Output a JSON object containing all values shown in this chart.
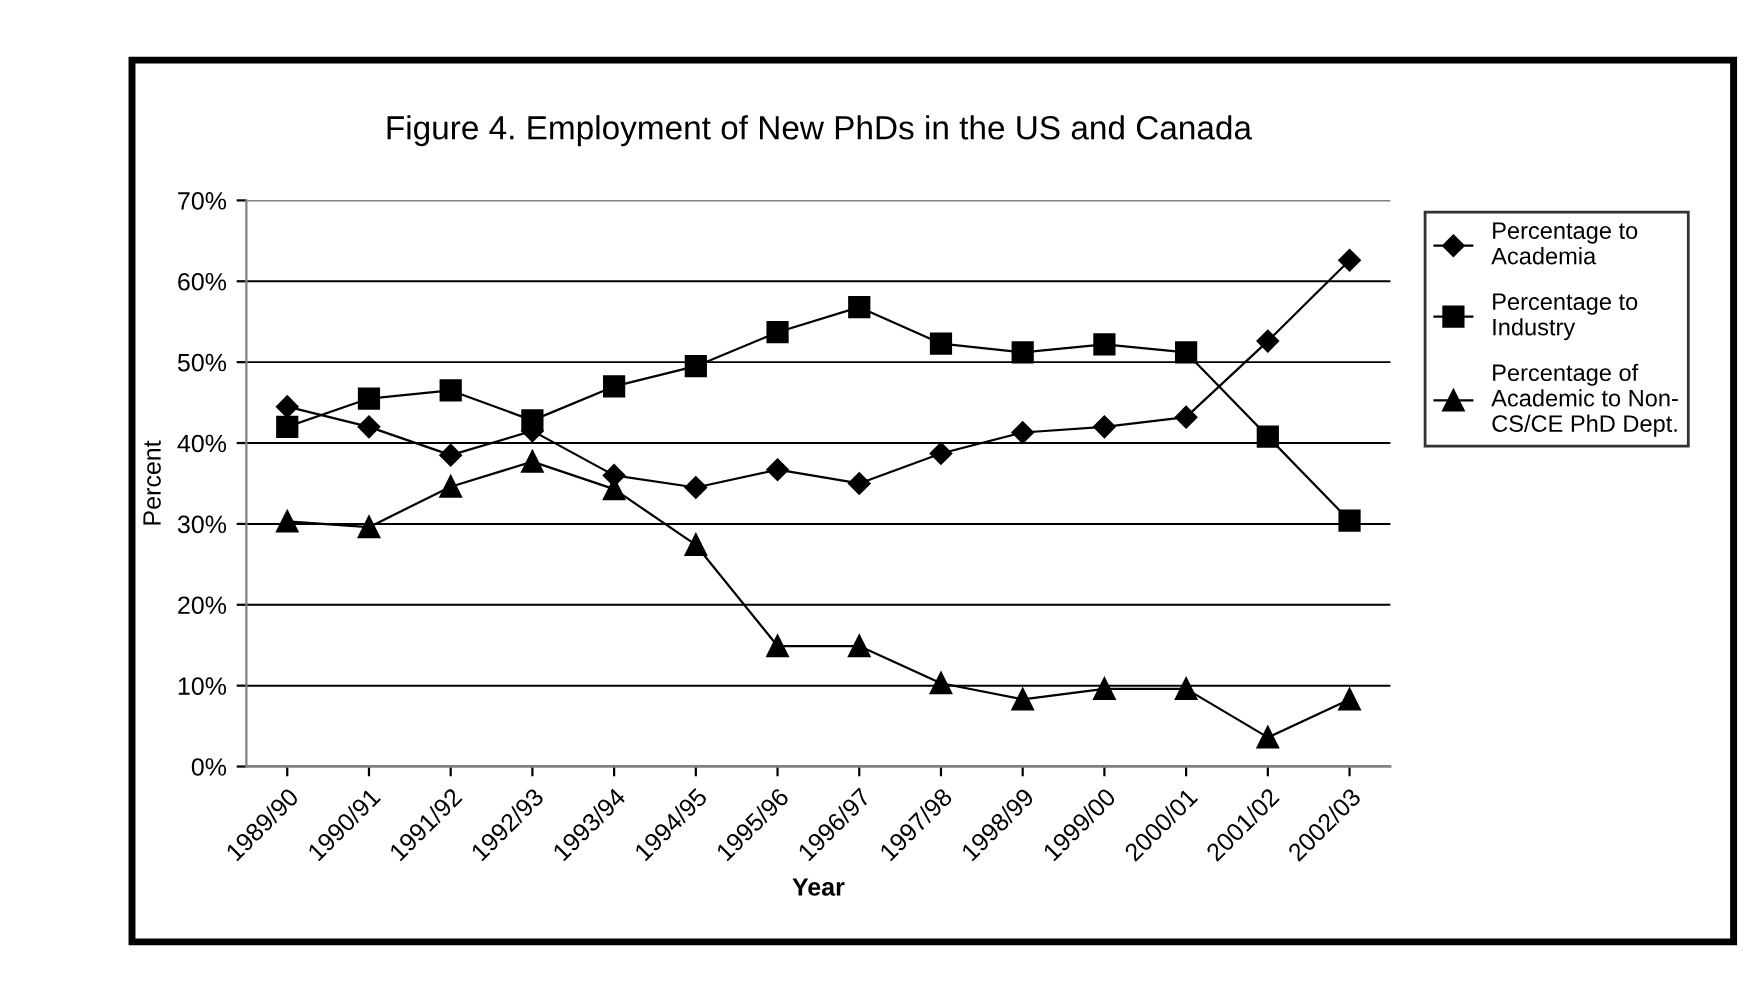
{
  "chart_data": {
    "type": "line",
    "title": "Figure 4. Employment of New PhDs in the US and Canada",
    "xlabel": "Year",
    "ylabel": "Percent",
    "categories": [
      "1989/90",
      "1990/91",
      "1991/92",
      "1992/93",
      "1993/94",
      "1994/95",
      "1995/96",
      "1996/97",
      "1997/98",
      "1998/99",
      "1999/00",
      "2000/01",
      "2001/02",
      "2002/03"
    ],
    "series": [
      {
        "name": "Percentage to\nAcademia",
        "color": "#000000",
        "marker": "diamond",
        "values": [
          44.5,
          42,
          38.5,
          41.5,
          36,
          34.5,
          36.7,
          35,
          38.7,
          41.3,
          42,
          43.2,
          52.6,
          62.6
        ]
      },
      {
        "name": "Percentage to\nIndustry",
        "color": "#000000",
        "marker": "square",
        "values": [
          42,
          45.5,
          46.5,
          42.8,
          47,
          49.5,
          53.7,
          56.8,
          52.3,
          51.2,
          52.2,
          51.2,
          40.8,
          30.4
        ]
      },
      {
        "name": "Percentage of\nAcademic to Non-\nCS/CE PhD Dept.",
        "color": "#000000",
        "marker": "triangle",
        "values": [
          30.3,
          29.6,
          34.6,
          37.7,
          34.3,
          27.4,
          14.9,
          14.9,
          10.3,
          8.3,
          9.6,
          9.6,
          3.6,
          8.3
        ]
      }
    ],
    "ylim": [
      0,
      70
    ],
    "yticks": [
      {
        "value": 0,
        "label": "0%"
      },
      {
        "value": 10,
        "label": "10%"
      },
      {
        "value": 20,
        "label": "20%"
      },
      {
        "value": 30,
        "label": "30%"
      },
      {
        "value": 40,
        "label": "40%"
      },
      {
        "value": 50,
        "label": "50%"
      },
      {
        "value": 60,
        "label": "60%"
      },
      {
        "value": 70,
        "label": "70%"
      }
    ],
    "grid": "y",
    "legend": "right",
    "line_style": "solid"
  }
}
